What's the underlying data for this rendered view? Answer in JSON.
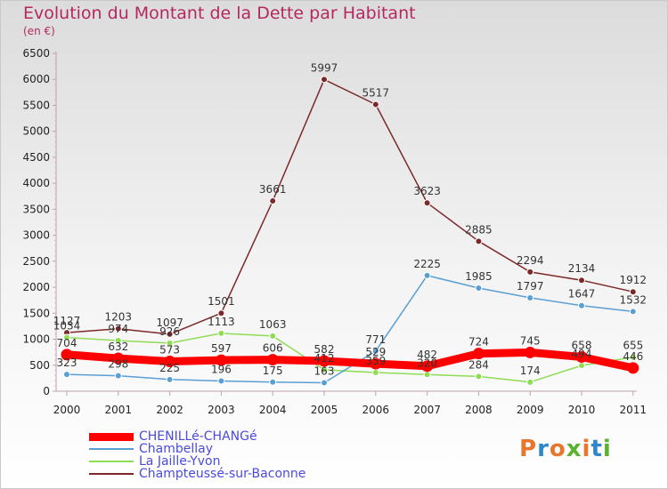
{
  "title": "Evolution du Montant de la Dette par Habitant",
  "unit": "(en €)",
  "logo": "Proxiti",
  "chart_data": {
    "type": "line",
    "categories": [
      "2000",
      "2001",
      "2002",
      "2003",
      "2004",
      "2005",
      "2006",
      "2007",
      "2008",
      "2009",
      "2010",
      "2011"
    ],
    "ylim": [
      0,
      6500
    ],
    "yticks": [
      0,
      500,
      1000,
      1500,
      2000,
      2500,
      3000,
      3500,
      4000,
      4500,
      5000,
      5500,
      6000,
      6500
    ],
    "grid": false,
    "legend_position": "bottom-left",
    "series": [
      {
        "name": "CHENILLé-CHANGé",
        "color": "#ff0000",
        "values": [
          704,
          632,
          573,
          597,
          606,
          582,
          529,
          482,
          724,
          745,
          658,
          446
        ],
        "labels": [
          "704",
          "632",
          "573",
          "597",
          "606",
          "582",
          "529",
          "482",
          "724",
          "745",
          "658",
          "446"
        ]
      },
      {
        "name": "Chambellay",
        "color": "#5a9fd4",
        "values": [
          323,
          298,
          225,
          196,
          175,
          163,
          771,
          2225,
          1985,
          1797,
          1647,
          1532
        ],
        "labels": [
          "323",
          "298",
          "225",
          "196",
          "175",
          "163",
          "771",
          "2225",
          "1985",
          "1797",
          "1647",
          "1532"
        ]
      },
      {
        "name": "La Jaille-Yvon",
        "color": "#8fdc56",
        "values": [
          1034,
          974,
          926,
          1113,
          1063,
          412,
          359,
          320,
          284,
          174,
          494,
          655
        ],
        "labels": [
          "1034",
          "974",
          "926",
          "1113",
          "1063",
          "412",
          "359",
          "320",
          "284",
          "174",
          "494",
          "655"
        ]
      },
      {
        "name": "Champteussé-sur-Baconne",
        "color": "#7d2828",
        "values": [
          1127,
          1203,
          1097,
          1501,
          3661,
          5997,
          5517,
          3623,
          2885,
          2294,
          2134,
          1912
        ],
        "labels": [
          "1127",
          "1203",
          "1097",
          "1501",
          "3661",
          "5997",
          "5517",
          "3623",
          "2885",
          "2294",
          "2134",
          "1912"
        ]
      }
    ]
  }
}
